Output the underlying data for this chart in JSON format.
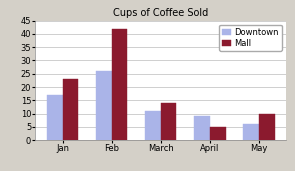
{
  "title": "Cups of Coffee Sold",
  "categories": [
    "Jan",
    "Feb",
    "March",
    "April",
    "May"
  ],
  "series": [
    {
      "label": "Downtown",
      "values": [
        17,
        26,
        11,
        9,
        6
      ],
      "color": "#aab4e8"
    },
    {
      "label": "Mall",
      "values": [
        23,
        42,
        14,
        5,
        10
      ],
      "color": "#8b1a2e"
    }
  ],
  "ylim": [
    0,
    45
  ],
  "yticks": [
    0,
    5,
    10,
    15,
    20,
    25,
    30,
    35,
    40,
    45
  ],
  "bar_width": 0.32,
  "title_fontsize": 7,
  "tick_fontsize": 6,
  "legend_fontsize": 6,
  "figure_bg_color": "#d4d0c8",
  "plot_bg_color": "#ffffff",
  "grid_color": "#c8c8c8"
}
